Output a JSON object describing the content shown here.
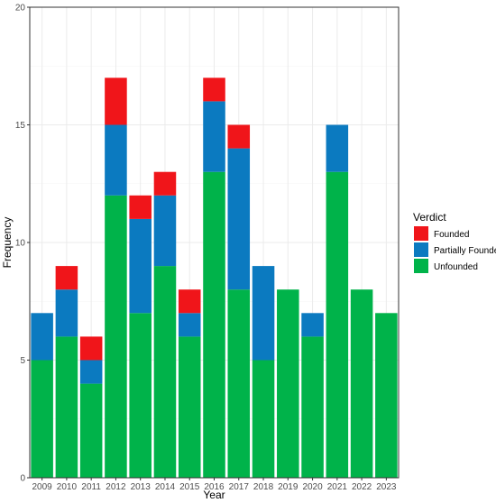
{
  "chart_data": {
    "type": "bar",
    "stacked": true,
    "categories": [
      "2009",
      "2010",
      "2011",
      "2012",
      "2013",
      "2014",
      "2015",
      "2016",
      "2017",
      "2018",
      "2019",
      "2020",
      "2021",
      "2022",
      "2023"
    ],
    "series": [
      {
        "name": "Unfounded",
        "color": "#00B34A",
        "values": [
          5,
          6,
          4,
          12,
          7,
          9,
          6,
          13,
          8,
          5,
          8,
          6,
          13,
          8,
          7
        ]
      },
      {
        "name": "Partially Founded",
        "color": "#0B7AC0",
        "values": [
          2,
          2,
          1,
          3,
          4,
          3,
          1,
          3,
          6,
          4,
          0,
          1,
          2,
          0,
          0
        ]
      },
      {
        "name": "Founded",
        "color": "#F0151A",
        "values": [
          0,
          1,
          1,
          2,
          1,
          1,
          1,
          1,
          1,
          0,
          0,
          0,
          0,
          0,
          0
        ]
      }
    ],
    "xlabel": "Year",
    "ylabel": "Frequency",
    "ylim": [
      0,
      20
    ],
    "yticks": [
      0,
      5,
      10,
      15,
      20
    ],
    "grid": true,
    "legend": {
      "title": "Verdict",
      "position": "right",
      "entries": [
        {
          "label": "Founded",
          "color": "#F0151A"
        },
        {
          "label": "Partially Founded",
          "color": "#0B7AC0"
        },
        {
          "label": "Unfounded",
          "color": "#00B34A"
        }
      ]
    }
  }
}
